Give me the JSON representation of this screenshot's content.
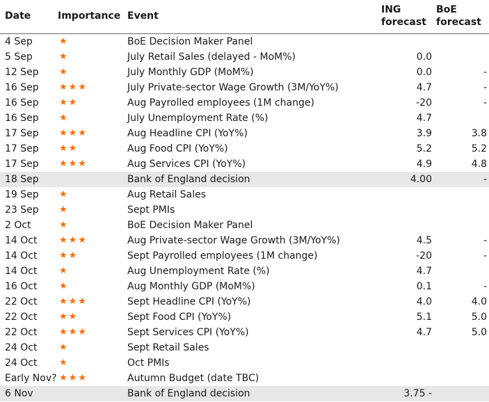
{
  "header": {
    "date": "Date",
    "importance": "Importance",
    "event": "Event",
    "ing_line1": "ING",
    "ing_line2": "forecast",
    "boe_line1": "BoE",
    "boe_line2": "forecast"
  },
  "rows": [
    {
      "date": "4 Sep",
      "importance": "★",
      "event": "BoE Decision Maker Panel",
      "ing": "",
      "boe": "",
      "shaded": false
    },
    {
      "date": "5 Sep",
      "importance": "★",
      "event": "July Retail Sales (delayed - MoM%)",
      "ing": "0.0",
      "boe": "",
      "shaded": false
    },
    {
      "date": "12 Sep",
      "importance": "★",
      "event": "July Monthly GDP (MoM%)",
      "ing": "0.0",
      "boe": "-",
      "shaded": false
    },
    {
      "date": "16 Sep",
      "importance": "★★★",
      "event": "July Private-sector Wage Growth (3M/YoY%)",
      "ing": "4.7",
      "boe": "-",
      "shaded": false
    },
    {
      "date": "16 Sep",
      "importance": "★★",
      "event": "Aug Payrolled employees (1M change)",
      "ing": "-20",
      "boe": "-",
      "shaded": false
    },
    {
      "date": "16 Sep",
      "importance": "★",
      "event": "July Unemployment Rate (%)",
      "ing": "4.7",
      "boe": "",
      "shaded": false
    },
    {
      "date": "17 Sep",
      "importance": "★★★",
      "event": "Aug Headline CPI (YoY%)",
      "ing": "3.9",
      "boe": "3.8",
      "shaded": false
    },
    {
      "date": "17 Sep",
      "importance": "★★",
      "event": "Aug Food CPI (YoY%)",
      "ing": "5.2",
      "boe": "5.2",
      "shaded": false
    },
    {
      "date": "17 Sep",
      "importance": "★★★",
      "event": "Aug Services CPI (YoY%)",
      "ing": "4.9",
      "boe": "4.8",
      "shaded": false
    },
    {
      "date": "18 Sep",
      "importance": "",
      "event": "Bank of England decision",
      "ing": "4.00",
      "boe": "-",
      "shaded": true
    },
    {
      "date": "19 Sep",
      "importance": "★",
      "event": "Aug Retail Sales",
      "ing": "",
      "boe": "",
      "shaded": false
    },
    {
      "date": "23 Sep",
      "importance": "★",
      "event": "Sept PMIs",
      "ing": "",
      "boe": "",
      "shaded": false
    },
    {
      "date": "2 Oct",
      "importance": "★",
      "event": "BoE Decision Maker Panel",
      "ing": "",
      "boe": "",
      "shaded": false
    },
    {
      "date": "14 Oct",
      "importance": "★★★",
      "event": "Aug Private-sector Wage Growth (3M/YoY%)",
      "ing": "4.5",
      "boe": "-",
      "shaded": false
    },
    {
      "date": "14 Oct",
      "importance": "★★",
      "event": "Sept Payrolled employees (1M change)",
      "ing": "-20",
      "boe": "-",
      "shaded": false
    },
    {
      "date": "14 Oct",
      "importance": "★",
      "event": "Aug Unemployment Rate (%)",
      "ing": "4.7",
      "boe": "",
      "shaded": false
    },
    {
      "date": "16 Oct",
      "importance": "★",
      "event": "Aug Monthly GDP (MoM%)",
      "ing": "0.1",
      "boe": "-",
      "shaded": false
    },
    {
      "date": "22 Oct",
      "importance": "★★★",
      "event": "Sept Headline CPI (YoY%)",
      "ing": "4.0",
      "boe": "4.0",
      "shaded": false
    },
    {
      "date": "22 Oct",
      "importance": "★★",
      "event": "Sept Food CPI (YoY%)",
      "ing": "5.1",
      "boe": "5.0",
      "shaded": false
    },
    {
      "date": "22 Oct",
      "importance": "★★★",
      "event": "Sept Services CPI (YoY%)",
      "ing": "4.7",
      "boe": "5.0",
      "shaded": false
    },
    {
      "date": "24 Oct",
      "importance": "★",
      "event": "Sept Retail Sales",
      "ing": "",
      "boe": "",
      "shaded": false
    },
    {
      "date": "24 Oct",
      "importance": "★",
      "event": "Oct PMIs",
      "ing": "",
      "boe": "",
      "shaded": false
    },
    {
      "date": "Early Nov?",
      "importance": "★★★",
      "event": "Autumn Budget (date TBC)",
      "ing": "",
      "boe": "",
      "shaded": false
    },
    {
      "date": "6 Nov",
      "importance": "",
      "event": "Bank of England decision",
      "ing": "3.75 -",
      "boe": "",
      "shaded": true
    }
  ],
  "colors": {
    "star": "#ff6a00",
    "shade": "#e7e7e7",
    "rule": "#6a6a6a"
  }
}
